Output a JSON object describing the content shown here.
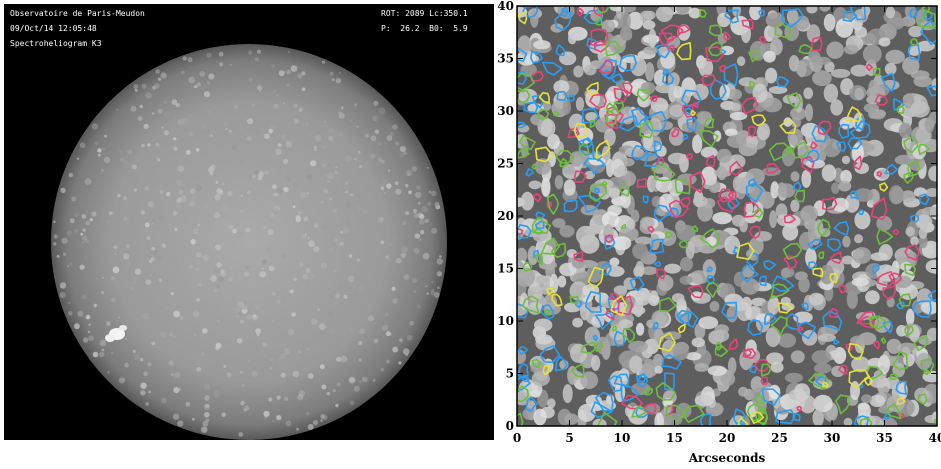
{
  "left_panel": {
    "header_left": [
      "Observatoire de Paris-Meudon",
      "09/Oct/14 12:05:48",
      "Spectroheliogram K3"
    ],
    "header_right_rot": "ROT: 2089 Lc:350.1",
    "header_right_p": "P:  26.2  B0:  5.9"
  },
  "right_panel": {
    "colors": {
      "blue": "#2a9df4",
      "magenta": "#e8437a",
      "green": "#6cbf3c",
      "yellow": "#e5e337"
    }
  },
  "chart_data": {
    "type": "image",
    "xlabel": "Arcseconds",
    "xlim": [
      0,
      40
    ],
    "ylim": [
      0,
      40
    ],
    "x_ticks": [
      "0",
      "5",
      "10",
      "15",
      "20",
      "25",
      "30",
      "35",
      "40"
    ],
    "y_ticks": [
      "0",
      "5",
      "10",
      "15",
      "20",
      "25",
      "30",
      "35",
      "40"
    ]
  }
}
